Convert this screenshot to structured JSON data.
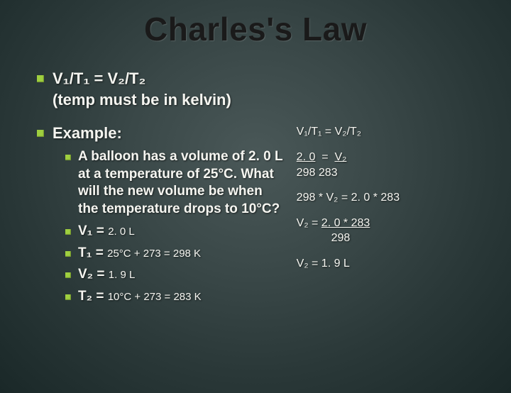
{
  "title": "Charles's Law",
  "formula_main": "V₁/T₁ = V₂/T₂",
  "formula_note": "(temp must be in kelvin)",
  "example_label": "Example:",
  "problem": "A balloon has a volume of 2. 0 L at a temperature of 25°C. What will the new volume be when the temperature drops to 10°C?",
  "vars": {
    "v1_label": "V₁ =",
    "v1_val": "2. 0 L",
    "t1_label": "T₁ =",
    "t1_val": "25°C + 273 = 298 K",
    "v2_label": "V₂ =",
    "v2_val": "1. 9 L",
    "t2_label": "T₂ =",
    "t2_val": "10°C + 273 = 283 K"
  },
  "steps": {
    "s1": "V₁/T₁ = V₂/T₂",
    "s2a": "2. 0",
    "s2b": "V₂",
    "s2c": "298   283",
    "s3": "298 * V₂ = 2. 0 * 283",
    "s4a": "V₂ = ",
    "s4b": "2. 0 * 283",
    "s4c": "298",
    "s5": "V₂ = 1. 9 L"
  },
  "colors": {
    "bullet": "#9fcf3f",
    "title": "#1a1a1a",
    "text": "#f5f5f0"
  }
}
